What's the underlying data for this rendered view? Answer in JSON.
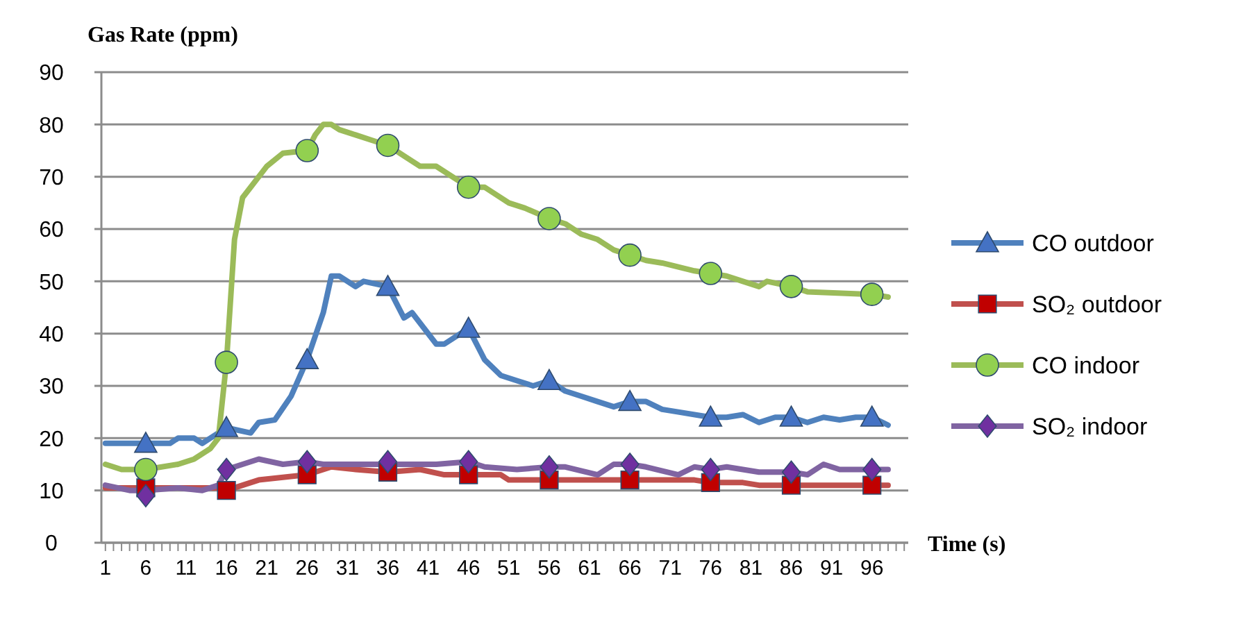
{
  "chart_data": {
    "type": "line",
    "ylabel": "Gas Rate (ppm)",
    "xlabel": "Time (s)",
    "ylim": [
      0,
      90
    ],
    "yticks": [
      0,
      10,
      20,
      30,
      40,
      50,
      60,
      70,
      80,
      90
    ],
    "xlim": [
      0.5,
      100.5
    ],
    "xticks": [
      1,
      {
        "value": 2,
        "label": null
      },
      {
        "value": 3,
        "label": null
      },
      {
        "value": 4,
        "label": null
      },
      {
        "value": 5,
        "label": null
      },
      6,
      {
        "value": 7,
        "label": null
      },
      {
        "value": 8,
        "label": null
      },
      {
        "value": 9,
        "label": null
      },
      {
        "value": 10,
        "label": null
      },
      11,
      {
        "value": 12,
        "label": null
      },
      {
        "value": 13,
        "label": null
      },
      {
        "value": 14,
        "label": null
      },
      {
        "value": 15,
        "label": null
      },
      16,
      {
        "value": 17,
        "label": null
      },
      {
        "value": 18,
        "label": null
      },
      {
        "value": 19,
        "label": null
      },
      {
        "value": 20,
        "label": null
      },
      21,
      {
        "value": 22,
        "label": null
      },
      {
        "value": 23,
        "label": null
      },
      {
        "value": 24,
        "label": null
      },
      {
        "value": 25,
        "label": null
      },
      26,
      {
        "value": 27,
        "label": null
      },
      {
        "value": 28,
        "label": null
      },
      {
        "value": 29,
        "label": null
      },
      {
        "value": 30,
        "label": null
      },
      31,
      {
        "value": 32,
        "label": null
      },
      {
        "value": 33,
        "label": null
      },
      {
        "value": 34,
        "label": null
      },
      {
        "value": 35,
        "label": null
      },
      36,
      {
        "value": 37,
        "label": null
      },
      {
        "value": 38,
        "label": null
      },
      {
        "value": 39,
        "label": null
      },
      {
        "value": 40,
        "label": null
      },
      41,
      {
        "value": 42,
        "label": null
      },
      {
        "value": 43,
        "label": null
      },
      {
        "value": 44,
        "label": null
      },
      {
        "value": 45,
        "label": null
      },
      46,
      {
        "value": 47,
        "label": null
      },
      {
        "value": 48,
        "label": null
      },
      {
        "value": 49,
        "label": null
      },
      {
        "value": 50,
        "label": null
      },
      51,
      {
        "value": 52,
        "label": null
      },
      {
        "value": 53,
        "label": null
      },
      {
        "value": 54,
        "label": null
      },
      {
        "value": 55,
        "label": null
      },
      56,
      {
        "value": 57,
        "label": null
      },
      {
        "value": 58,
        "label": null
      },
      {
        "value": 59,
        "label": null
      },
      {
        "value": 60,
        "label": null
      },
      61,
      {
        "value": 62,
        "label": null
      },
      {
        "value": 63,
        "label": null
      },
      {
        "value": 64,
        "label": null
      },
      {
        "value": 65,
        "label": null
      },
      66,
      {
        "value": 67,
        "label": null
      },
      {
        "value": 68,
        "label": null
      },
      {
        "value": 69,
        "label": null
      },
      {
        "value": 70,
        "label": null
      },
      71,
      {
        "value": 72,
        "label": null
      },
      {
        "value": 73,
        "label": null
      },
      {
        "value": 74,
        "label": null
      },
      {
        "value": 75,
        "label": null
      },
      76,
      {
        "value": 77,
        "label": null
      },
      {
        "value": 78,
        "label": null
      },
      {
        "value": 79,
        "label": null
      },
      {
        "value": 80,
        "label": null
      },
      81,
      {
        "value": 82,
        "label": null
      },
      {
        "value": 83,
        "label": null
      },
      {
        "value": 84,
        "label": null
      },
      {
        "value": 85,
        "label": null
      },
      86,
      {
        "value": 87,
        "label": null
      },
      {
        "value": 88,
        "label": null
      },
      {
        "value": 89,
        "label": null
      },
      {
        "value": 90,
        "label": null
      },
      91,
      {
        "value": 92,
        "label": null
      },
      {
        "value": 93,
        "label": null
      },
      {
        "value": 94,
        "label": null
      },
      {
        "value": 95,
        "label": null
      },
      96,
      {
        "value": 97,
        "label": null
      },
      {
        "value": 98,
        "label": null
      },
      {
        "value": 99,
        "label": null
      },
      {
        "value": 100,
        "label": null
      }
    ],
    "grid": "y",
    "legend": "right",
    "series": [
      {
        "type": "line",
        "name": "CO outdoor",
        "color": "#4f81bd",
        "x": [
          1,
          9,
          10,
          12,
          13,
          16,
          19,
          20,
          22,
          24,
          26,
          28,
          29,
          30,
          32,
          33,
          36,
          38,
          39,
          42,
          43,
          46,
          48,
          50,
          52,
          54,
          56,
          58,
          60,
          62,
          64,
          66,
          68,
          70,
          72,
          76,
          78,
          80,
          82,
          84,
          86,
          88,
          90,
          92,
          94,
          96,
          98
        ],
        "values": [
          19,
          19,
          20,
          20,
          19,
          22,
          21,
          23,
          23.5,
          28,
          35,
          44,
          51,
          51,
          49,
          50,
          49,
          43,
          44,
          38,
          38,
          41,
          35,
          32,
          31,
          30,
          31,
          29,
          28,
          27,
          26,
          27,
          27,
          25.5,
          25,
          24,
          24,
          24.5,
          23,
          24,
          24,
          23,
          24,
          23.5,
          24,
          24,
          22.5
        ]
      },
      {
        "type": "line",
        "name": "SO₂ outdoor",
        "color": "#c0504d",
        "x": [
          1,
          15,
          16,
          18,
          20,
          23,
          26,
          29,
          32,
          36,
          40,
          43,
          46,
          50,
          51,
          56,
          66,
          74,
          76,
          80,
          82,
          86,
          96,
          98
        ],
        "values": [
          10.5,
          10.5,
          10,
          11,
          12,
          12.5,
          13,
          14.5,
          14,
          13.5,
          14,
          13,
          13,
          13,
          12,
          12,
          12,
          12,
          11.5,
          11.5,
          11,
          11,
          11,
          11
        ]
      },
      {
        "type": "line",
        "name": "CO indoor",
        "color": "#9bbb59",
        "x": [
          1,
          3,
          6,
          10,
          12,
          14,
          15,
          16,
          17,
          18,
          19,
          21,
          23,
          26,
          27,
          28,
          29,
          30,
          32,
          34,
          36,
          38,
          40,
          42,
          44,
          46,
          48,
          51,
          53,
          56,
          58,
          60,
          62,
          64,
          66,
          68,
          70,
          74,
          76,
          78,
          80,
          82,
          83,
          86,
          88,
          96,
          98
        ],
        "values": [
          15,
          14,
          14,
          15,
          16,
          18,
          20,
          34.5,
          58,
          66,
          68,
          72,
          74.5,
          75,
          78,
          80,
          80,
          79,
          78,
          77,
          76,
          74,
          72,
          72,
          70,
          68,
          68,
          65,
          64,
          62,
          61,
          59,
          58,
          56,
          55,
          54,
          53.5,
          52,
          51.5,
          51,
          50,
          49,
          50,
          49,
          48,
          47.5,
          47
        ]
      },
      {
        "type": "line",
        "name": "SO₂ indoor",
        "color": "#8064a2",
        "x": [
          1,
          4,
          6,
          10,
          13,
          15,
          16,
          18,
          20,
          23,
          26,
          28,
          40,
          42,
          46,
          48,
          52,
          56,
          58,
          62,
          64,
          66,
          68,
          72,
          74,
          76,
          78,
          82,
          86,
          88,
          90,
          92,
          96,
          98
        ],
        "values": [
          11,
          10,
          10,
          10.5,
          10,
          11,
          14,
          15,
          16,
          15,
          15.5,
          15,
          15,
          15,
          15.5,
          14.5,
          14,
          14.5,
          14.5,
          13,
          15,
          15,
          14.5,
          13,
          14.5,
          14,
          14.5,
          13.5,
          13.5,
          13,
          15,
          14,
          14,
          14
        ]
      },
      {
        "type": "scatter",
        "color": "#4472c4",
        "marker": "triangle",
        "x": [
          6,
          16,
          26,
          36,
          46,
          56,
          66,
          76,
          86,
          96
        ],
        "values": [
          19,
          22,
          35,
          49,
          41,
          31,
          27,
          24,
          24,
          24
        ]
      },
      {
        "type": "scatter",
        "color": "#c00000",
        "marker": "square",
        "x": [
          6,
          16,
          26,
          36,
          46,
          56,
          66,
          76,
          86,
          96
        ],
        "values": [
          10.5,
          10,
          13,
          13.5,
          13,
          12,
          12,
          11.5,
          11,
          11
        ]
      },
      {
        "type": "scatter",
        "color": "#92d050",
        "marker": "circle",
        "x": [
          6,
          16,
          26,
          36,
          46,
          56,
          66,
          76,
          86,
          96
        ],
        "values": [
          14,
          34.5,
          75,
          76,
          68,
          62,
          55,
          51.5,
          49,
          47.5
        ]
      },
      {
        "type": "scatter",
        "color": "#7030a0",
        "marker": "diamond",
        "x": [
          6,
          16,
          26,
          36,
          46,
          56,
          66,
          76,
          86,
          96
        ],
        "values": [
          9,
          14,
          15.5,
          15.5,
          15.5,
          14.5,
          15,
          14,
          13.5,
          14
        ]
      }
    ]
  }
}
